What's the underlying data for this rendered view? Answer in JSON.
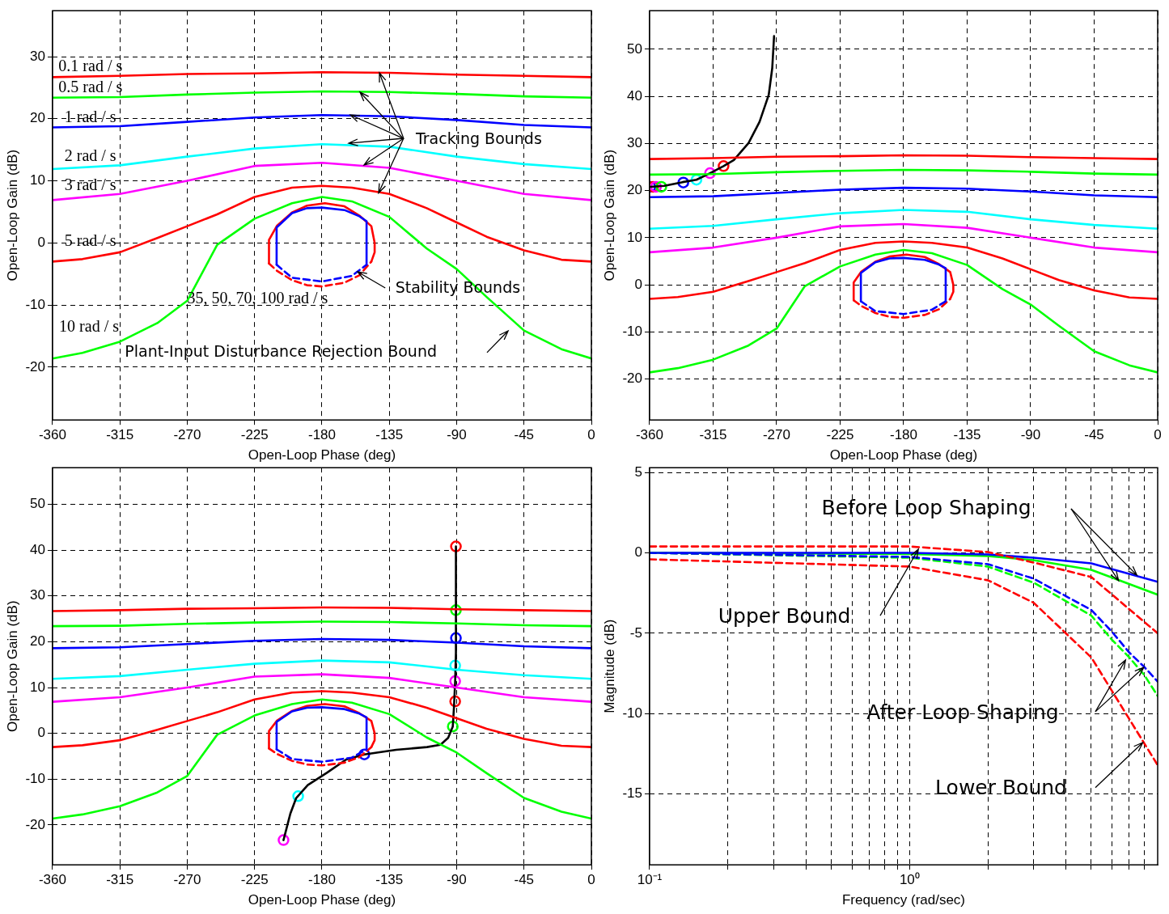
{
  "chart_data": [
    {
      "type": "line",
      "xlabel": "Open-Loop Phase (deg)",
      "ylabel": "Open-Loop Gain (dB)",
      "xlim": [
        -360,
        0
      ],
      "xticks": [
        -360,
        -315,
        -270,
        -225,
        -180,
        -135,
        -90,
        -45,
        0
      ],
      "ylim": [
        -28.5,
        37.4
      ],
      "yticks": [
        -20,
        -10,
        0,
        10,
        20,
        30
      ],
      "grid": true,
      "series": [
        {
          "color": "#ff0000",
          "x": [
            -360,
            -315,
            -270,
            -225,
            -180,
            -135,
            -90,
            -45,
            0
          ],
          "values": [
            26.7,
            26.9,
            27.2,
            27.3,
            27.5,
            27.4,
            27.1,
            26.9,
            26.7
          ]
        },
        {
          "color": "#00ff00",
          "x": [
            -360,
            -315,
            -270,
            -225,
            -180,
            -135,
            -90,
            -45,
            0
          ],
          "values": [
            23.4,
            23.5,
            23.9,
            24.2,
            24.4,
            24.3,
            24.0,
            23.6,
            23.4
          ]
        },
        {
          "color": "#0000ff",
          "x": [
            -360,
            -315,
            -270,
            -225,
            -180,
            -135,
            -90,
            -45,
            0
          ],
          "values": [
            18.6,
            18.8,
            19.5,
            20.2,
            20.6,
            20.4,
            19.8,
            19.0,
            18.6
          ]
        },
        {
          "color": "#00ffff",
          "x": [
            -360,
            -315,
            -270,
            -225,
            -180,
            -135,
            -90,
            -45,
            0
          ],
          "values": [
            11.9,
            12.5,
            13.9,
            15.2,
            15.9,
            15.5,
            13.9,
            12.7,
            11.9
          ]
        },
        {
          "color": "#ff00ff",
          "x": [
            -360,
            -315,
            -270,
            -225,
            -180,
            -135,
            -90,
            -45,
            0
          ],
          "values": [
            6.9,
            7.9,
            10.0,
            12.4,
            12.9,
            12.1,
            10.0,
            7.9,
            6.9
          ]
        },
        {
          "color": "#ff0000",
          "x": [
            -360,
            -340,
            -315,
            -290,
            -270,
            -250,
            -225,
            -200,
            -180,
            -160,
            -135,
            -110,
            -90,
            -70,
            -45,
            -20,
            0
          ],
          "values": [
            -3.0,
            -2.6,
            -1.5,
            0.8,
            2.7,
            4.6,
            7.4,
            8.9,
            9.2,
            8.9,
            7.9,
            5.6,
            3.3,
            1.0,
            -1.2,
            -2.7,
            -3.0
          ]
        },
        {
          "color": "#00ff00",
          "x": [
            -360,
            -340,
            -315,
            -290,
            -270,
            -250,
            -225,
            -200,
            -180,
            -160,
            -135,
            -110,
            -90,
            -70,
            -45,
            -20,
            0
          ],
          "values": [
            -18.6,
            -17.7,
            -15.9,
            -12.9,
            -9.3,
            -0.3,
            3.9,
            6.4,
            7.4,
            6.7,
            4.2,
            -0.9,
            -4.2,
            -8.7,
            -14.1,
            -17.1,
            -18.6
          ]
        },
        {
          "color": "#0000ff",
          "x": [
            -150.2,
            -150.2,
            -155,
            -165,
            -180,
            -190,
            -200,
            -210.3,
            -210.3
          ],
          "values": [
            -3.5,
            3.5,
            4.3,
            5.3,
            5.7,
            5.6,
            4.8,
            2.5,
            -3.5
          ]
        },
        {
          "color": "#0000ff",
          "line_style": "dashed",
          "x": [
            -210.3,
            -200,
            -180,
            -160,
            -150.2
          ],
          "values": [
            -3.5,
            -5.6,
            -6.2,
            -5.3,
            -3.5
          ]
        },
        {
          "color": "#ff0000",
          "x": [
            -147,
            -144.8,
            -144.8,
            -147,
            -155,
            -165,
            -178,
            -190,
            -200,
            -210,
            -215.4,
            -215.4
          ],
          "values": [
            -3,
            -1.5,
            0,
            2.7,
            4.4,
            5.9,
            6.4,
            6,
            4.9,
            2.8,
            0.5,
            -3.3
          ]
        },
        {
          "color": "#ff0000",
          "line_style": "dashed",
          "x": [
            -215.4,
            -210,
            -200,
            -190,
            -180,
            -165,
            -155,
            -147
          ],
          "values": [
            -3.3,
            -4.5,
            -6,
            -6.8,
            -7,
            -6.4,
            -5.2,
            -3
          ]
        }
      ],
      "annotations": [
        "0.1 rad / s",
        "0.5 rad / s",
        "1 rad / s",
        "2 rad / s",
        "3 rad / s",
        "5 rad / s",
        "35, 50, 70, 100 rad / s",
        "10 rad / s",
        {
          "text": "Tracking Bounds",
          "x": -162.3,
          "y": 16
        },
        {
          "text": "Stability Bounds",
          "x": -156.4,
          "y": -4.6
        },
        "Plant-Input Disturbance Rejection Bound"
      ]
    },
    {
      "type": "line",
      "xlabel": "Open-Loop Phase (deg)",
      "ylabel": "Open-Loop Gain (dB)",
      "xlim": [
        -360,
        0
      ],
      "xticks": [
        -360,
        -315,
        -270,
        -225,
        -180,
        -135,
        -90,
        -45,
        0
      ],
      "ylim": [
        -28.7,
        58.2
      ],
      "yticks": [
        -20,
        -10,
        0,
        10,
        20,
        30,
        40,
        50
      ],
      "grid": true,
      "series": [
        {
          "color": "#ff0000",
          "x": [
            -360,
            -315,
            -270,
            -225,
            -180,
            -135,
            -90,
            -45,
            0
          ],
          "values": [
            26.7,
            26.9,
            27.2,
            27.3,
            27.5,
            27.4,
            27.1,
            26.9,
            26.7
          ]
        },
        {
          "color": "#00ff00",
          "x": [
            -360,
            -315,
            -270,
            -225,
            -180,
            -135,
            -90,
            -45,
            0
          ],
          "values": [
            23.4,
            23.5,
            23.9,
            24.2,
            24.4,
            24.3,
            24.0,
            23.6,
            23.4
          ]
        },
        {
          "color": "#0000ff",
          "x": [
            -360,
            -315,
            -270,
            -225,
            -180,
            -135,
            -90,
            -45,
            0
          ],
          "values": [
            18.6,
            18.8,
            19.5,
            20.2,
            20.6,
            20.4,
            19.8,
            19.0,
            18.6
          ]
        },
        {
          "color": "#00ffff",
          "x": [
            -360,
            -315,
            -270,
            -225,
            -180,
            -135,
            -90,
            -45,
            0
          ],
          "values": [
            11.9,
            12.5,
            13.9,
            15.2,
            15.9,
            15.5,
            13.9,
            12.7,
            11.9
          ]
        },
        {
          "color": "#ff00ff",
          "x": [
            -360,
            -315,
            -270,
            -225,
            -180,
            -135,
            -90,
            -45,
            0
          ],
          "values": [
            6.9,
            7.9,
            10.0,
            12.4,
            12.9,
            12.1,
            10.0,
            7.9,
            6.9
          ]
        },
        {
          "color": "#ff0000",
          "x": [
            -360,
            -340,
            -315,
            -290,
            -270,
            -250,
            -225,
            -200,
            -180,
            -160,
            -135,
            -110,
            -90,
            -70,
            -45,
            -20,
            0
          ],
          "values": [
            -3.0,
            -2.6,
            -1.5,
            0.8,
            2.7,
            4.6,
            7.4,
            8.9,
            9.2,
            8.9,
            7.9,
            5.6,
            3.3,
            1.0,
            -1.2,
            -2.7,
            -3.0
          ]
        },
        {
          "color": "#00ff00",
          "x": [
            -360,
            -340,
            -315,
            -290,
            -270,
            -250,
            -225,
            -200,
            -180,
            -160,
            -135,
            -110,
            -90,
            -70,
            -45,
            -20,
            0
          ],
          "values": [
            -18.6,
            -17.7,
            -15.9,
            -12.9,
            -9.3,
            -0.3,
            3.9,
            6.4,
            7.4,
            6.7,
            4.2,
            -0.9,
            -4.2,
            -8.7,
            -14.1,
            -17.1,
            -18.6
          ]
        },
        {
          "color": "#0000ff",
          "x": [
            -150.2,
            -150.2,
            -155,
            -165,
            -180,
            -190,
            -200,
            -210.3,
            -210.3
          ],
          "values": [
            -3.5,
            3.5,
            4.3,
            5.3,
            5.7,
            5.6,
            4.8,
            2.5,
            -3.5
          ]
        },
        {
          "color": "#0000ff",
          "line_style": "dashed",
          "x": [
            -210.3,
            -200,
            -180,
            -160,
            -150.2
          ],
          "values": [
            -3.5,
            -5.6,
            -6.2,
            -5.3,
            -3.5
          ]
        },
        {
          "color": "#ff0000",
          "x": [
            -147,
            -144.8,
            -144.8,
            -147,
            -155,
            -165,
            -178,
            -190,
            -200,
            -210,
            -215.4,
            -215.4
          ],
          "values": [
            -3,
            -1.5,
            0,
            2.7,
            4.4,
            5.9,
            6.4,
            6,
            4.9,
            2.8,
            0.5,
            -3.3
          ]
        },
        {
          "color": "#ff0000",
          "line_style": "dashed",
          "x": [
            -215.4,
            -210,
            -200,
            -190,
            -180,
            -165,
            -155,
            -147
          ],
          "values": [
            -3.3,
            -4.5,
            -6,
            -6.8,
            -7,
            -6.4,
            -5.2,
            -3
          ]
        },
        {
          "color": "#000000",
          "x": [
            -359.5,
            -349.6,
            -336.6,
            -326.8,
            -317.2,
            -307.6,
            -300.3,
            -289.9,
            -282.1,
            -275.6,
            -273.1,
            -271.8
          ],
          "values": [
            20.8,
            21.0,
            21.8,
            22.3,
            23.7,
            25.2,
            26.5,
            30.1,
            34.6,
            40.3,
            46,
            52.8
          ]
        },
        {
          "type": "scatter",
          "marker": "circle",
          "color": "#ff0000",
          "colors": [
            "#0000ff",
            "#ff0000",
            "#ff00ff",
            "#00ff00",
            "#0000ff",
            "#00ffff",
            "#ff00ff",
            "#ff0000"
          ],
          "x": [
            -359.5,
            -357.5,
            -355.5,
            -351.7,
            -336.1,
            -326.8,
            -317.2,
            -307.6
          ],
          "values": [
            20.8,
            20.8,
            20.8,
            20.8,
            21.7,
            22.3,
            23.7,
            25.2
          ]
        }
      ]
    },
    {
      "type": "line",
      "xlabel": "Open-Loop Phase (deg)",
      "ylabel": "Open-Loop Gain (dB)",
      "xlim": [
        -360,
        0
      ],
      "xticks": [
        -360,
        -315,
        -270,
        -225,
        -180,
        -135,
        -90,
        -45,
        0
      ],
      "ylim": [
        -28.7,
        58
      ],
      "yticks": [
        -20,
        -10,
        0,
        10,
        20,
        30,
        40,
        50
      ],
      "grid": true,
      "series": [
        {
          "color": "#ff0000",
          "x": [
            -360,
            -315,
            -270,
            -225,
            -180,
            -135,
            -90,
            -45,
            0
          ],
          "values": [
            26.7,
            26.9,
            27.2,
            27.3,
            27.5,
            27.4,
            27.1,
            26.9,
            26.7
          ]
        },
        {
          "color": "#00ff00",
          "x": [
            -360,
            -315,
            -270,
            -225,
            -180,
            -135,
            -90,
            -45,
            0
          ],
          "values": [
            23.4,
            23.5,
            23.9,
            24.2,
            24.4,
            24.3,
            24.0,
            23.6,
            23.4
          ]
        },
        {
          "color": "#0000ff",
          "x": [
            -360,
            -315,
            -270,
            -225,
            -180,
            -135,
            -90,
            -45,
            0
          ],
          "values": [
            18.6,
            18.8,
            19.5,
            20.2,
            20.6,
            20.4,
            19.8,
            19.0,
            18.6
          ]
        },
        {
          "color": "#00ffff",
          "x": [
            -360,
            -315,
            -270,
            -225,
            -180,
            -135,
            -90,
            -45,
            0
          ],
          "values": [
            11.9,
            12.5,
            13.9,
            15.2,
            15.9,
            15.5,
            13.9,
            12.7,
            11.9
          ]
        },
        {
          "color": "#ff00ff",
          "x": [
            -360,
            -315,
            -270,
            -225,
            -180,
            -135,
            -90,
            -45,
            0
          ],
          "values": [
            6.9,
            7.9,
            10.0,
            12.4,
            12.9,
            12.1,
            10.0,
            7.9,
            6.9
          ]
        },
        {
          "color": "#ff0000",
          "x": [
            -360,
            -340,
            -315,
            -290,
            -270,
            -250,
            -225,
            -200,
            -180,
            -160,
            -135,
            -110,
            -90,
            -70,
            -45,
            -20,
            0
          ],
          "values": [
            -3.0,
            -2.6,
            -1.5,
            0.8,
            2.7,
            4.6,
            7.4,
            8.9,
            9.2,
            8.9,
            7.9,
            5.6,
            3.3,
            1.0,
            -1.2,
            -2.7,
            -3.0
          ]
        },
        {
          "color": "#00ff00",
          "x": [
            -360,
            -340,
            -315,
            -290,
            -270,
            -250,
            -225,
            -200,
            -180,
            -160,
            -135,
            -110,
            -90,
            -70,
            -45,
            -20,
            0
          ],
          "values": [
            -18.6,
            -17.7,
            -15.9,
            -12.9,
            -9.3,
            -0.3,
            3.9,
            6.4,
            7.4,
            6.7,
            4.2,
            -0.9,
            -4.2,
            -8.7,
            -14.1,
            -17.1,
            -18.6
          ]
        },
        {
          "color": "#0000ff",
          "x": [
            -150.2,
            -150.2,
            -155,
            -165,
            -180,
            -190,
            -200,
            -210.3,
            -210.3
          ],
          "values": [
            -3.5,
            3.5,
            4.3,
            5.3,
            5.7,
            5.6,
            4.8,
            2.5,
            -3.5
          ]
        },
        {
          "color": "#0000ff",
          "line_style": "dashed",
          "x": [
            -210.3,
            -200,
            -180,
            -160,
            -150.2
          ],
          "values": [
            -3.5,
            -5.6,
            -6.2,
            -5.3,
            -3.5
          ]
        },
        {
          "color": "#ff0000",
          "x": [
            -147,
            -144.8,
            -144.8,
            -147,
            -155,
            -165,
            -178,
            -190,
            -200,
            -210,
            -215.4,
            -215.4
          ],
          "values": [
            -3,
            -1.5,
            0,
            2.7,
            4.4,
            5.9,
            6.4,
            6,
            4.9,
            2.8,
            0.5,
            -3.3
          ]
        },
        {
          "color": "#ff0000",
          "line_style": "dashed",
          "x": [
            -215.4,
            -210,
            -200,
            -190,
            -180,
            -165,
            -155,
            -147
          ],
          "values": [
            -3.3,
            -4.5,
            -6,
            -6.8,
            -7,
            -6.4,
            -5.2,
            -3
          ]
        },
        {
          "color": "#000000",
          "x": [
            -205.7,
            -201.1,
            -197.2,
            -189.5,
            -176.7,
            -163.8,
            -151.7,
            -130.4,
            -109.8,
            -100.8,
            -95.7,
            -92.6,
            -91.8,
            -91,
            -90.5,
            -90.5
          ],
          "values": [
            -23.3,
            -17.5,
            -14.1,
            -11.3,
            -8.6,
            -5.7,
            -4.6,
            -3.6,
            -3.0,
            -2.5,
            -1.0,
            1.5,
            5.7,
            11.4,
            17.6,
            40.8
          ]
        },
        {
          "type": "scatter",
          "marker": "circle",
          "color": "#ff0000",
          "colors": [
            "#ff0000",
            "#00ff00",
            "#0000ff",
            "#00ffff",
            "#ff00ff",
            "#ff0000",
            "#00ff00",
            "#0000ff",
            "#00ffff",
            "#ff00ff"
          ],
          "x": [
            -90.5,
            -90.5,
            -90.5,
            -91,
            -91,
            -91,
            -92.6,
            -151.7,
            -195.9,
            -205.7
          ],
          "values": [
            40.8,
            26.9,
            20.8,
            14.8,
            11.4,
            7.0,
            1.5,
            -4.6,
            -13.7,
            -23.3
          ]
        }
      ]
    },
    {
      "type": "line",
      "xlabel": "Frequency (rad/sec)",
      "ylabel": "Magnitude (dB)",
      "log": "x",
      "xlim": [
        0.1,
        9
      ],
      "xticks": [
        {
          "value": 0.1,
          "label": "10⁻¹"
        },
        {
          "value": 0.2,
          "label": null
        },
        {
          "value": 0.3,
          "label": null
        },
        {
          "value": 0.4,
          "label": null
        },
        {
          "value": 0.5,
          "label": null
        },
        {
          "value": 0.6,
          "label": null
        },
        {
          "value": 0.7,
          "label": null
        },
        {
          "value": 0.8,
          "label": null
        },
        {
          "value": 0.9,
          "label": null
        },
        {
          "value": 1,
          "label": "10⁰"
        },
        {
          "value": 2,
          "label": null
        },
        {
          "value": 3,
          "label": null
        },
        {
          "value": 4,
          "label": null
        },
        {
          "value": 5,
          "label": null
        },
        {
          "value": 6,
          "label": null
        },
        {
          "value": 7,
          "label": null
        },
        {
          "value": 8,
          "label": null
        }
      ],
      "ylim": [
        -19.4,
        5.3
      ],
      "yticks": [
        -15,
        -10,
        -5,
        0,
        5
      ],
      "grid": true,
      "series": [
        {
          "color": "#ff0000",
          "line_style": "dashed",
          "x": [
            0.1,
            1,
            2,
            3,
            5,
            9
          ],
          "values": [
            0.4,
            0.4,
            0.05,
            -0.6,
            -1.5,
            -5.0
          ]
        },
        {
          "color": "#ff0000",
          "line_style": "dashed",
          "x": [
            0.1,
            1,
            2,
            3,
            5,
            9
          ],
          "values": [
            -0.4,
            -0.85,
            -1.7,
            -3.1,
            -6.5,
            -13.2
          ]
        },
        {
          "color": "#0000ff",
          "line_style": "dashed",
          "x": [
            0.1,
            1,
            2,
            3,
            5,
            6,
            7,
            8,
            9
          ],
          "values": [
            0,
            -0.25,
            -0.7,
            -1.6,
            -3.55,
            -4.9,
            -6.2,
            -7.1,
            -8.0
          ]
        },
        {
          "color": "#00ff00",
          "line_style": "dashed",
          "x": [
            0.1,
            1,
            2,
            3,
            5,
            6,
            7,
            8,
            9
          ],
          "values": [
            0,
            -0.3,
            -0.85,
            -1.85,
            -3.9,
            -5.4,
            -6.5,
            -7.6,
            -8.9
          ]
        },
        {
          "color": "#0000ff",
          "x": [
            0.1,
            1,
            2,
            3,
            5,
            9
          ],
          "values": [
            0,
            0,
            -0.1,
            -0.3,
            -0.65,
            -1.8
          ]
        },
        {
          "color": "#00ff00",
          "x": [
            0.1,
            1,
            2,
            3,
            5,
            9
          ],
          "values": [
            0,
            -0.07,
            -0.2,
            -0.45,
            -1.05,
            -2.6
          ]
        }
      ],
      "annotations": [
        "Before Loop Shaping",
        "Upper Bound",
        "After Loop Shaping",
        "Lower Bound"
      ]
    }
  ]
}
